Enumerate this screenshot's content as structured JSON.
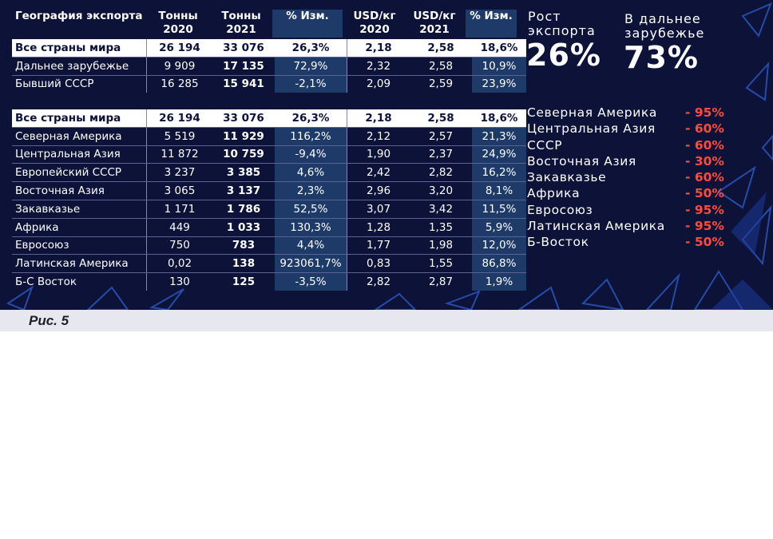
{
  "headers": {
    "c1": "География экспорта",
    "c2": "Тонны 2020",
    "c3": "Тонны 2021",
    "c4": "% Изм.",
    "c5": "USD/кг 2020",
    "c6": "USD/кг 2021",
    "c7": "% Изм."
  },
  "table1": [
    [
      "Все страны мира",
      "26 194",
      "33 076",
      "26,3%",
      "2,18",
      "2,58",
      "18,6%"
    ],
    [
      "Дальнее зарубежье",
      "9 909",
      "17 135",
      "72,9%",
      "2,32",
      "2,58",
      "10,9%"
    ],
    [
      "Бывший СССР",
      "16 285",
      "15 941",
      "-2,1%",
      "2,09",
      "2,59",
      "23,9%"
    ]
  ],
  "table2": [
    [
      "Все страны мира",
      "26 194",
      "33 076",
      "26,3%",
      "2,18",
      "2,58",
      "18,6%"
    ],
    [
      "Северная Америка",
      "5 519",
      "11 929",
      "116,2%",
      "2,12",
      "2,57",
      "21,3%"
    ],
    [
      "Центральная Азия",
      "11 872",
      "10 759",
      "-9,4%",
      "1,90",
      "2,37",
      "24,9%"
    ],
    [
      "Европейский СССР",
      "3 237",
      "3 385",
      "4,6%",
      "2,42",
      "2,82",
      "16,2%"
    ],
    [
      "Восточная Азия",
      "3 065",
      "3 137",
      "2,3%",
      "2,96",
      "3,20",
      "8,1%"
    ],
    [
      "Закавказье",
      "1 171",
      "1 786",
      "52,5%",
      "3,07",
      "3,42",
      "11,5%"
    ],
    [
      "Африка",
      "449",
      "1 033",
      "130,3%",
      "1,28",
      "1,35",
      "5,9%"
    ],
    [
      "Евросоюз",
      "750",
      "783",
      "4,4%",
      "1,77",
      "1,98",
      "12,0%"
    ],
    [
      "Латинская Америка",
      "0,02",
      "138",
      "923061,7%",
      "0,83",
      "1,55",
      "86,8%"
    ],
    [
      "Б-С Восток",
      "130",
      "125",
      "-3,5%",
      "2,82",
      "2,87",
      "1,9%"
    ]
  ],
  "stats": {
    "growth_label_1": "Рост",
    "growth_label_2": "экспорта",
    "growth_value": "26%",
    "abroad_label_1": "В дальнее",
    "abroad_label_2": "зарубежье",
    "abroad_value": "73%"
  },
  "regions": [
    {
      "name": "Северная Америка",
      "pct": "- 95%"
    },
    {
      "name": "Центральная Азия",
      "pct": "- 60%"
    },
    {
      "name": "СССР",
      "pct": "- 60%"
    },
    {
      "name": "Восточная Азия",
      "pct": "- 30%"
    },
    {
      "name": "Закавказье",
      "pct": "- 60%"
    },
    {
      "name": "Африка",
      "pct": "- 50%"
    },
    {
      "name": "Евросоюз",
      "pct": "- 95%"
    },
    {
      "name": "Латинская Америка",
      "pct": "- 95%"
    },
    {
      "name": "Б-Восток",
      "pct": "- 50%"
    }
  ],
  "caption": "Рис. 5",
  "colors": {
    "background": "#0c1238",
    "highlight_col": "#1d3a68",
    "accent_red": "#ff4a3c"
  }
}
